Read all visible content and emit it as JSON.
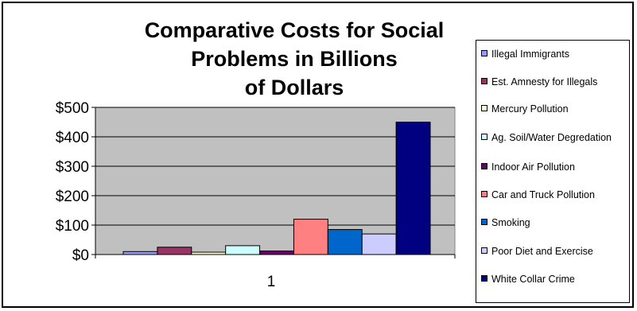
{
  "chart_data": {
    "type": "bar",
    "title_lines": [
      "Comparative Costs for Social",
      "Problems in Billions",
      "of Dollars"
    ],
    "categories": [
      "1"
    ],
    "ylim": [
      0,
      500
    ],
    "yticks": [
      0,
      100,
      200,
      300,
      400,
      500
    ],
    "ytick_labels": [
      "$0",
      "$100",
      "$200",
      "$300",
      "$400",
      "$500"
    ],
    "grid": true,
    "legend_position": "right",
    "plot_background": "#c0c0c0",
    "series": [
      {
        "name": "Illegal Immigrants",
        "values": [
          10
        ],
        "color": "#9999ff"
      },
      {
        "name": "Est. Amnesty for Illegals",
        "values": [
          25
        ],
        "color": "#993366"
      },
      {
        "name": "Mercury Pollution",
        "values": [
          8
        ],
        "color": "#ffffcc"
      },
      {
        "name": "Ag. Soil/Water Degredation",
        "values": [
          30
        ],
        "color": "#ccffff"
      },
      {
        "name": "Indoor Air Pollution",
        "values": [
          12
        ],
        "color": "#660066"
      },
      {
        "name": "Car and Truck Pollution",
        "values": [
          120
        ],
        "color": "#ff8080"
      },
      {
        "name": "Smoking",
        "values": [
          85
        ],
        "color": "#0066cc"
      },
      {
        "name": "Poor Diet and Exercise",
        "values": [
          70
        ],
        "color": "#ccccff"
      },
      {
        "name": "White Collar Crime",
        "values": [
          450
        ],
        "color": "#000080"
      }
    ]
  }
}
